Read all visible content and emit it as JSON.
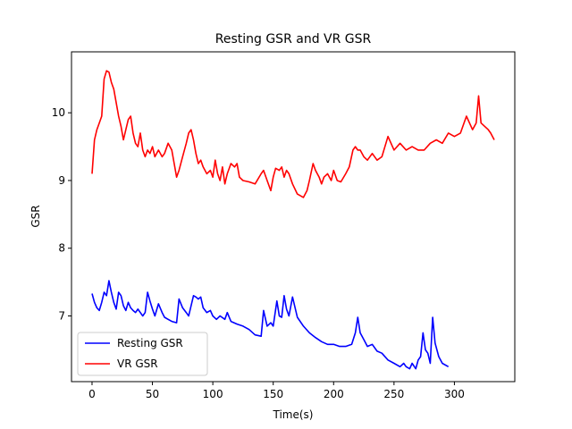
{
  "chart_data": {
    "type": "line",
    "title": "Resting GSR and VR GSR",
    "xlabel": "Time(s)",
    "ylabel": "GSR",
    "xlim": [
      -17,
      350
    ],
    "ylim": [
      6.03,
      10.9
    ],
    "xticks": [
      0,
      50,
      100,
      150,
      200,
      250,
      300
    ],
    "xtick_labels": [
      "0",
      "50",
      "100",
      "150",
      "200",
      "250",
      "300"
    ],
    "yticks": [
      7,
      8,
      9,
      10
    ],
    "ytick_labels": [
      "7",
      "8",
      "9",
      "10"
    ],
    "grid": false,
    "legend_position": "lower-left",
    "series": [
      {
        "name": "Resting GSR",
        "color": "#0000ff",
        "x": [
          0,
          2,
          4,
          6,
          8,
          10,
          12,
          14,
          16,
          18,
          20,
          22,
          24,
          26,
          28,
          30,
          32,
          34,
          36,
          38,
          40,
          42,
          44,
          46,
          48,
          50,
          52,
          55,
          58,
          60,
          63,
          66,
          70,
          72,
          75,
          78,
          80,
          84,
          86,
          88,
          90,
          92,
          95,
          98,
          100,
          103,
          106,
          110,
          112,
          115,
          120,
          125,
          130,
          135,
          140,
          142,
          145,
          148,
          150,
          153,
          155,
          157,
          159,
          161,
          163,
          166,
          170,
          175,
          180,
          185,
          190,
          195,
          200,
          205,
          210,
          215,
          218,
          220,
          222,
          225,
          228,
          232,
          236,
          240,
          245,
          250,
          255,
          258,
          260,
          263,
          265,
          268,
          270,
          272,
          274,
          276,
          278,
          280,
          282,
          284,
          287,
          290,
          295
        ],
        "y": [
          7.33,
          7.2,
          7.12,
          7.08,
          7.2,
          7.35,
          7.3,
          7.52,
          7.35,
          7.2,
          7.1,
          7.35,
          7.3,
          7.15,
          7.08,
          7.2,
          7.12,
          7.08,
          7.05,
          7.1,
          7.05,
          7.0,
          7.05,
          7.35,
          7.22,
          7.1,
          7.0,
          7.18,
          7.05,
          6.98,
          6.95,
          6.92,
          6.9,
          7.25,
          7.12,
          7.05,
          7.0,
          7.3,
          7.28,
          7.25,
          7.28,
          7.12,
          7.05,
          7.08,
          7.0,
          6.95,
          7.0,
          6.95,
          7.05,
          6.92,
          6.88,
          6.85,
          6.8,
          6.72,
          6.7,
          7.08,
          6.85,
          6.9,
          6.85,
          7.22,
          7.0,
          6.98,
          7.3,
          7.1,
          7.0,
          7.28,
          6.98,
          6.85,
          6.75,
          6.68,
          6.62,
          6.58,
          6.58,
          6.55,
          6.55,
          6.58,
          6.75,
          6.98,
          6.75,
          6.65,
          6.55,
          6.58,
          6.48,
          6.45,
          6.35,
          6.3,
          6.25,
          6.3,
          6.25,
          6.22,
          6.3,
          6.22,
          6.35,
          6.4,
          6.75,
          6.5,
          6.45,
          6.3,
          6.98,
          6.6,
          6.4,
          6.3,
          6.25
        ]
      },
      {
        "name": "VR GSR",
        "color": "#ff0000",
        "x": [
          0,
          2,
          4,
          6,
          8,
          10,
          12,
          14,
          16,
          18,
          20,
          22,
          24,
          26,
          28,
          30,
          32,
          34,
          36,
          38,
          40,
          42,
          44,
          46,
          48,
          50,
          52,
          55,
          58,
          60,
          63,
          66,
          68,
          70,
          72,
          75,
          78,
          80,
          82,
          84,
          86,
          88,
          90,
          92,
          95,
          98,
          100,
          102,
          104,
          106,
          108,
          110,
          112,
          115,
          118,
          120,
          122,
          125,
          130,
          135,
          140,
          142,
          145,
          148,
          150,
          152,
          155,
          157,
          159,
          161,
          163,
          166,
          170,
          175,
          178,
          180,
          183,
          185,
          188,
          190,
          192,
          195,
          198,
          200,
          203,
          206,
          210,
          213,
          216,
          218,
          220,
          222,
          225,
          228,
          232,
          236,
          240,
          245,
          250,
          255,
          260,
          265,
          270,
          275,
          280,
          285,
          290,
          295,
          300,
          305,
          310,
          315,
          318,
          320,
          322,
          325,
          328,
          330,
          333
        ],
        "y": [
          9.1,
          9.6,
          9.75,
          9.85,
          9.95,
          10.5,
          10.62,
          10.6,
          10.45,
          10.35,
          10.15,
          9.95,
          9.8,
          9.6,
          9.75,
          9.9,
          9.95,
          9.7,
          9.55,
          9.5,
          9.7,
          9.45,
          9.35,
          9.45,
          9.4,
          9.5,
          9.35,
          9.45,
          9.35,
          9.4,
          9.55,
          9.45,
          9.25,
          9.05,
          9.15,
          9.35,
          9.55,
          9.7,
          9.75,
          9.6,
          9.4,
          9.25,
          9.3,
          9.2,
          9.1,
          9.15,
          9.05,
          9.3,
          9.1,
          9.0,
          9.2,
          8.95,
          9.1,
          9.25,
          9.2,
          9.25,
          9.05,
          9.0,
          8.98,
          8.95,
          9.1,
          9.15,
          9.0,
          8.85,
          9.05,
          9.18,
          9.15,
          9.2,
          9.05,
          9.15,
          9.1,
          8.95,
          8.8,
          8.75,
          8.85,
          9.0,
          9.25,
          9.15,
          9.05,
          8.95,
          9.05,
          9.1,
          9.0,
          9.15,
          9.0,
          8.98,
          9.1,
          9.2,
          9.45,
          9.5,
          9.45,
          9.45,
          9.35,
          9.3,
          9.4,
          9.3,
          9.35,
          9.65,
          9.45,
          9.55,
          9.45,
          9.5,
          9.45,
          9.45,
          9.55,
          9.6,
          9.55,
          9.7,
          9.65,
          9.7,
          9.95,
          9.75,
          9.85,
          10.25,
          9.85,
          9.8,
          9.75,
          9.7,
          9.6
        ]
      }
    ]
  }
}
